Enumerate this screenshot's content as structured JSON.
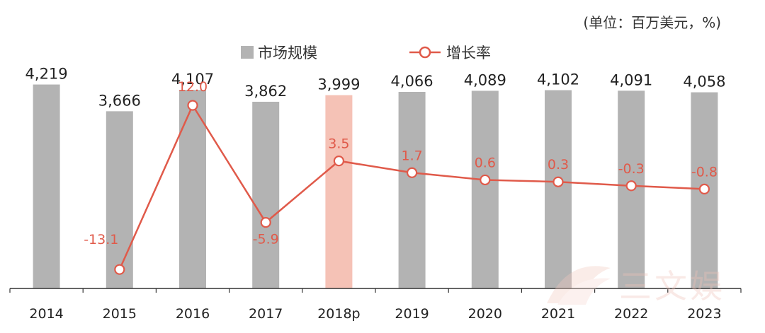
{
  "unit_label": "(单位：百万美元，%)",
  "watermark_text": "三文娱",
  "colors": {
    "bar": "#b3b3b3",
    "bar_highlight": "#f5c2b6",
    "line": "#e05a4a",
    "axis": "#333333"
  },
  "chart_data": {
    "type": "bar",
    "categories": [
      "2014",
      "2015",
      "2016",
      "2017",
      "2018p",
      "2019",
      "2020",
      "2021",
      "2022",
      "2023"
    ],
    "series": [
      {
        "name": "市场规模",
        "type": "bar",
        "values": [
          4219,
          3666,
          4107,
          3862,
          3999,
          4066,
          4089,
          4102,
          4091,
          4058
        ],
        "labels": [
          "4,219",
          "3,666",
          "4,107",
          "3,862",
          "3,999",
          "4,066",
          "4,089",
          "4,102",
          "4,091",
          "4,058"
        ]
      },
      {
        "name": "增长率",
        "type": "line",
        "values": [
          null,
          -13.1,
          12.0,
          -5.9,
          3.5,
          1.7,
          0.6,
          0.3,
          -0.3,
          -0.8
        ],
        "labels": [
          "",
          "-13.1",
          "12.0",
          "-5.9",
          "3.5",
          "1.7",
          "0.6",
          "0.3",
          "-0.3",
          "-0.8"
        ]
      }
    ],
    "highlight_category": "2018p",
    "bar_ylim": [
      0,
      4300
    ],
    "line_ylim": [
      -16,
      24
    ],
    "grid": false,
    "legend_position": "top-center"
  }
}
